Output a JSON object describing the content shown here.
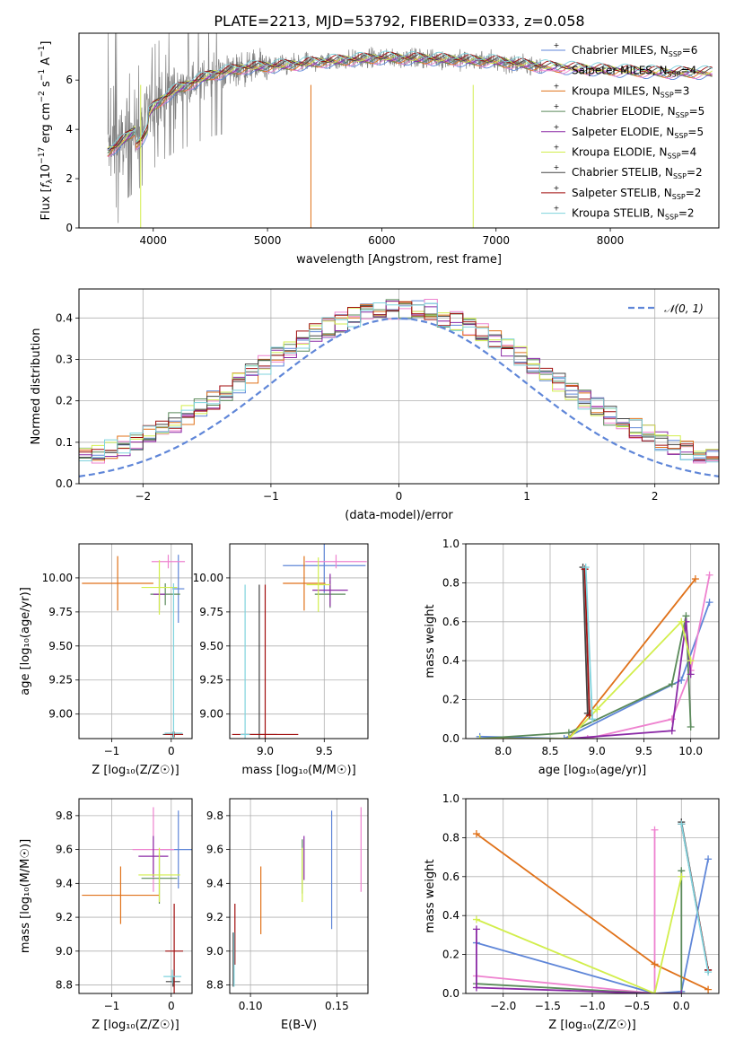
{
  "figure": {
    "title": "PLATE=2213, MJD=53792, FIBERID=0333, z=0.058",
    "colors": {
      "Chabrier MILES": "#5f86d8",
      "Salpeter MILES": "#ee82cf",
      "Kroupa MILES": "#e0721a",
      "Chabrier ELODIE": "#5a8a5a",
      "Salpeter ELODIE": "#8b2aa6",
      "Kroupa ELODIE": "#d2ee4c",
      "Chabrier STELIB": "#444444",
      "Salpeter STELIB": "#a00e0e",
      "Kroupa STELIB": "#7fd3dd",
      "data": "#808080",
      "normal": "#5f86d8"
    }
  },
  "chart_data": [
    {
      "id": "spectrum",
      "type": "line",
      "xlabel": "wavelength [Angstrom, rest frame]",
      "ylabel": "Flux [f_λ10^-17 erg cm^-2 s^-1 A^-1]",
      "xlim": [
        3350,
        8950
      ],
      "ylim": [
        0,
        7.9
      ],
      "xticks": [
        "4000",
        "5000",
        "6000",
        "7000",
        "8000"
      ],
      "yticks": [
        "0",
        "2",
        "4",
        "6"
      ],
      "grid": false,
      "legend_position": "right",
      "legend": [
        {
          "name": "Chabrier MILES",
          "nssp": "6"
        },
        {
          "name": "Salpeter MILES",
          "nssp": "4"
        },
        {
          "name": "Kroupa MILES",
          "nssp": "3"
        },
        {
          "name": "Chabrier ELODIE",
          "nssp": "5"
        },
        {
          "name": "Salpeter ELODIE",
          "nssp": "5"
        },
        {
          "name": "Kroupa ELODIE",
          "nssp": "4"
        },
        {
          "name": "Chabrier STELIB",
          "nssp": "2"
        },
        {
          "name": "Salpeter STELIB",
          "nssp": "2"
        },
        {
          "name": "Kroupa STELIB",
          "nssp": "2"
        }
      ],
      "continuum": [
        [
          3600,
          3.1
        ],
        [
          3700,
          3.4
        ],
        [
          3800,
          3.8
        ],
        [
          3900,
          4.2
        ],
        [
          4000,
          4.9
        ],
        [
          4100,
          5.3
        ],
        [
          4200,
          5.6
        ],
        [
          4300,
          5.8
        ],
        [
          4500,
          6.2
        ],
        [
          4800,
          6.5
        ],
        [
          5000,
          6.55
        ],
        [
          5200,
          6.6
        ],
        [
          5500,
          6.75
        ],
        [
          6000,
          6.9
        ],
        [
          6500,
          6.85
        ],
        [
          7000,
          6.75
        ],
        [
          7400,
          6.55
        ],
        [
          8000,
          6.4
        ],
        [
          8500,
          6.3
        ],
        [
          8900,
          6.3
        ]
      ],
      "data_range": [
        3600,
        7400
      ]
    },
    {
      "id": "residuals",
      "type": "line",
      "xlabel": "(data-model)/error",
      "ylabel": "Normed distribution",
      "xlim": [
        -2.5,
        2.5
      ],
      "ylim": [
        0,
        0.47
      ],
      "xticks": [
        "−2",
        "−1",
        "0",
        "1",
        "2"
      ],
      "yticks": [
        "0.0",
        "0.1",
        "0.2",
        "0.3",
        "0.4"
      ],
      "grid": true,
      "legend_position": "upper right",
      "legend": [
        {
          "name": "𝒩(0, 1)"
        }
      ]
    },
    {
      "id": "age-vs-Z",
      "type": "scatter",
      "xlabel": "Z [log₁₀(Z/Z☉)]",
      "ylabel": "age  [log₁₀(age/yr)]",
      "xlim": [
        -1.55,
        0.35
      ],
      "ylim": [
        8.82,
        10.25
      ],
      "xticks": [
        "−1",
        "0"
      ],
      "yticks": [
        "9.00",
        "9.25",
        "9.50",
        "9.75",
        "10.00"
      ],
      "grid": true,
      "points": [
        {
          "model": "Chabrier MILES",
          "x": 0.12,
          "xerr": 0.1,
          "y": 9.92,
          "yerr": 0.25
        },
        {
          "model": "Salpeter MILES",
          "x": -0.05,
          "xerr": 0.28,
          "y": 10.12,
          "yerr": 0.05
        },
        {
          "model": "Kroupa MILES",
          "x": -0.9,
          "xerr": 0.6,
          "y": 9.96,
          "yerr": 0.2
        },
        {
          "model": "Chabrier ELODIE",
          "x": -0.1,
          "xerr": 0.25,
          "y": 9.88,
          "yerr": 0.08
        },
        {
          "model": "Salpeter ELODIE",
          "x": -0.2,
          "xerr": 0.1,
          "y": 9.88,
          "yerr": 0.12
        },
        {
          "model": "Kroupa ELODIE",
          "x": -0.2,
          "xerr": 0.3,
          "y": 9.93,
          "yerr": 0.2
        },
        {
          "model": "Chabrier STELIB",
          "x": 0.03,
          "xerr": 0.17,
          "y": 8.85,
          "yerr": 0.02
        },
        {
          "model": "Salpeter STELIB",
          "x": 0.05,
          "xerr": 0.15,
          "y": 8.85,
          "yerr": 0.02
        },
        {
          "model": "Kroupa STELIB",
          "x": 0.04,
          "xerr": 0.15,
          "y": 8.86,
          "yerr": 1.1
        }
      ]
    },
    {
      "id": "age-vs-mass",
      "type": "scatter",
      "xlabel": "mass [log₁₀(M/M☉)]",
      "ylabel": "",
      "xlim": [
        8.7,
        9.87
      ],
      "ylim": [
        8.82,
        10.25
      ],
      "xticks": [
        "9.0",
        "9.5"
      ],
      "yticks": [
        "9.00",
        "9.25",
        "9.50",
        "9.75",
        "10.00"
      ],
      "grid": true,
      "points": [
        {
          "model": "Chabrier MILES",
          "x": 9.5,
          "xerr": 0.35,
          "y": 10.09,
          "yerr": 0.2
        },
        {
          "model": "Salpeter MILES",
          "x": 9.6,
          "xerr": 0.26,
          "y": 10.12,
          "yerr": 0.05
        },
        {
          "model": "Kroupa MILES",
          "x": 9.33,
          "xerr": 0.18,
          "y": 9.96,
          "yerr": 0.2
        },
        {
          "model": "Chabrier ELODIE",
          "x": 9.55,
          "xerr": 0.13,
          "y": 9.88,
          "yerr": 0.1
        },
        {
          "model": "Salpeter ELODIE",
          "x": 9.55,
          "xerr": 0.15,
          "y": 9.91,
          "yerr": 0.12
        },
        {
          "model": "Kroupa ELODIE",
          "x": 9.45,
          "xerr": 0.1,
          "y": 9.95,
          "yerr": 0.2
        },
        {
          "model": "Chabrier STELIB",
          "x": 8.95,
          "xerr": 0.15,
          "y": 8.85,
          "yerr": 1.1
        },
        {
          "model": "Salpeter STELIB",
          "x": 9.0,
          "xerr": 0.28,
          "y": 8.85,
          "yerr": 1.1
        },
        {
          "model": "Kroupa STELIB",
          "x": 8.83,
          "xerr": 0.04,
          "y": 8.85,
          "yerr": 1.1
        }
      ]
    },
    {
      "id": "weight-vs-age",
      "type": "line",
      "xlabel": "age  [log₁₀(age/yr)]",
      "ylabel": "mass weight",
      "xlim": [
        7.6,
        10.3
      ],
      "ylim": [
        0,
        1
      ],
      "xticks": [
        "8.0",
        "8.5",
        "9.0",
        "9.5",
        "10.0"
      ],
      "yticks": [
        "0.0",
        "0.2",
        "0.4",
        "0.6",
        "0.8",
        "1.0"
      ],
      "grid": true,
      "series": [
        {
          "model": "Chabrier MILES",
          "points": [
            [
              7.75,
              0.01
            ],
            [
              8.65,
              0.0
            ],
            [
              9.9,
              0.3
            ],
            [
              10.2,
              0.7
            ]
          ]
        },
        {
          "model": "Salpeter MILES",
          "points": [
            [
              8.9,
              0.0
            ],
            [
              9.8,
              0.1
            ],
            [
              10.0,
              0.35
            ],
            [
              10.2,
              0.84
            ]
          ]
        },
        {
          "model": "Kroupa MILES",
          "points": [
            [
              8.7,
              0.0
            ],
            [
              10.05,
              0.82
            ]
          ]
        },
        {
          "model": "Chabrier ELODIE",
          "points": [
            [
              7.75,
              0.0
            ],
            [
              8.7,
              0.03
            ],
            [
              9.8,
              0.28
            ],
            [
              9.95,
              0.63
            ],
            [
              10.0,
              0.06
            ]
          ]
        },
        {
          "model": "Salpeter ELODIE",
          "points": [
            [
              8.7,
              0.0
            ],
            [
              9.8,
              0.04
            ],
            [
              9.95,
              0.6
            ],
            [
              10.0,
              0.33
            ]
          ]
        },
        {
          "model": "Kroupa ELODIE",
          "points": [
            [
              7.75,
              0.0
            ],
            [
              8.7,
              0.0
            ],
            [
              9.0,
              0.15
            ],
            [
              9.9,
              0.6
            ],
            [
              10.0,
              0.4
            ]
          ]
        },
        {
          "model": "Chabrier STELIB",
          "points": [
            [
              8.9,
              0.13
            ],
            [
              8.85,
              0.88
            ]
          ]
        },
        {
          "model": "Salpeter STELIB",
          "points": [
            [
              8.92,
              0.12
            ],
            [
              8.87,
              0.87
            ]
          ]
        },
        {
          "model": "Kroupa STELIB",
          "points": [
            [
              8.95,
              0.1
            ],
            [
              8.88,
              0.88
            ]
          ]
        }
      ]
    },
    {
      "id": "mass-vs-Z",
      "type": "scatter",
      "xlabel": "Z [log₁₀(Z/Z☉)]",
      "ylabel": "mass [log₁₀(M/M☉)]",
      "xlim": [
        -1.55,
        0.35
      ],
      "ylim": [
        8.75,
        9.9
      ],
      "xticks": [
        "−1",
        "0"
      ],
      "yticks": [
        "8.8",
        "9.0",
        "9.2",
        "9.4",
        "9.6",
        "9.8"
      ],
      "grid": true,
      "points": [
        {
          "model": "Chabrier MILES",
          "x": 0.12,
          "xerr": 0.3,
          "y": 9.6,
          "yerr": 0.23
        },
        {
          "model": "Salpeter MILES",
          "x": -0.3,
          "xerr": 0.35,
          "y": 9.6,
          "yerr": 0.25
        },
        {
          "model": "Kroupa MILES",
          "x": -0.85,
          "xerr": 0.65,
          "y": 9.33,
          "yerr": 0.17
        },
        {
          "model": "Chabrier ELODIE",
          "x": -0.2,
          "xerr": 0.3,
          "y": 9.43,
          "yerr": 0.15
        },
        {
          "model": "Salpeter ELODIE",
          "x": -0.3,
          "xerr": 0.25,
          "y": 9.56,
          "yerr": 0.12
        },
        {
          "model": "Kroupa ELODIE",
          "x": -0.2,
          "xerr": 0.35,
          "y": 9.45,
          "yerr": 0.16
        },
        {
          "model": "Chabrier STELIB",
          "x": 0.03,
          "xerr": 0.12,
          "y": 8.82,
          "yerr": 0.03
        },
        {
          "model": "Salpeter STELIB",
          "x": 0.05,
          "xerr": 0.15,
          "y": 9.0,
          "yerr": 0.28
        },
        {
          "model": "Kroupa STELIB",
          "x": 0.02,
          "xerr": 0.15,
          "y": 8.85,
          "yerr": 0.04
        }
      ]
    },
    {
      "id": "mass-vs-ebv",
      "type": "scatter",
      "xlabel": "E(B-V)",
      "ylabel": "",
      "xlim": [
        0.088,
        0.168
      ],
      "ylim": [
        8.75,
        9.9
      ],
      "xticks": [
        "0.10",
        "0.15"
      ],
      "yticks": [
        "8.8",
        "9.0",
        "9.2",
        "9.4",
        "9.6",
        "9.8"
      ],
      "grid": true,
      "points": [
        {
          "model": "Chabrier MILES",
          "x": 0.147,
          "y": 9.48,
          "yerr": 0.35
        },
        {
          "model": "Salpeter MILES",
          "x": 0.164,
          "y": 9.6,
          "yerr": 0.25
        },
        {
          "model": "Kroupa MILES",
          "x": 0.106,
          "y": 9.3,
          "yerr": 0.2
        },
        {
          "model": "Chabrier ELODIE",
          "x": 0.13,
          "y": 9.5,
          "yerr": 0.16
        },
        {
          "model": "Salpeter ELODIE",
          "x": 0.131,
          "y": 9.55,
          "yerr": 0.13
        },
        {
          "model": "Kroupa ELODIE",
          "x": 0.13,
          "y": 9.45,
          "yerr": 0.16
        },
        {
          "model": "Chabrier STELIB",
          "x": 0.09,
          "y": 8.95,
          "yerr": 0.16
        },
        {
          "model": "Salpeter STELIB",
          "x": 0.091,
          "y": 9.1,
          "yerr": 0.18
        },
        {
          "model": "Kroupa STELIB",
          "x": 0.0905,
          "y": 8.95,
          "yerr": 0.16
        }
      ]
    },
    {
      "id": "weight-vs-Z",
      "type": "line",
      "xlabel": "Z [log₁₀(Z/Z☉)]",
      "ylabel": "mass weight",
      "xlim": [
        -2.42,
        0.42
      ],
      "ylim": [
        0,
        1
      ],
      "xticks": [
        "−2.0",
        "−1.5",
        "−1.0",
        "−0.5",
        "0.0"
      ],
      "yticks": [
        "0.0",
        "0.2",
        "0.4",
        "0.6",
        "0.8",
        "1.0"
      ],
      "grid": true,
      "series": [
        {
          "model": "Chabrier MILES",
          "points": [
            [
              -2.3,
              0.26
            ],
            [
              -0.3,
              0.0
            ],
            [
              0.0,
              0.01
            ],
            [
              0.3,
              0.69
            ]
          ]
        },
        {
          "model": "Salpeter MILES",
          "points": [
            [
              -2.3,
              0.09
            ],
            [
              -0.3,
              0.0
            ],
            [
              -0.3,
              0.84
            ]
          ]
        },
        {
          "model": "Kroupa MILES",
          "points": [
            [
              -2.3,
              0.82
            ],
            [
              -0.3,
              0.15
            ],
            [
              0.3,
              0.02
            ]
          ]
        },
        {
          "model": "Chabrier ELODIE",
          "points": [
            [
              -2.3,
              0.05
            ],
            [
              -0.3,
              0.0
            ],
            [
              0.0,
              0.0
            ],
            [
              0.0,
              0.63
            ]
          ]
        },
        {
          "model": "Salpeter ELODIE",
          "points": [
            [
              -2.3,
              0.33
            ],
            [
              -2.3,
              0.03
            ],
            [
              -0.3,
              0.0
            ],
            [
              0.0,
              0.0
            ]
          ]
        },
        {
          "model": "Kroupa ELODIE",
          "points": [
            [
              -2.3,
              0.38
            ],
            [
              -0.3,
              0.0
            ],
            [
              0.0,
              0.6
            ]
          ]
        },
        {
          "model": "Chabrier STELIB",
          "points": [
            [
              0.0,
              0.88
            ],
            [
              0.3,
              0.12
            ]
          ]
        },
        {
          "model": "Salpeter STELIB",
          "points": [
            [
              0.0,
              0.87
            ],
            [
              0.3,
              0.12
            ]
          ]
        },
        {
          "model": "Kroupa STELIB",
          "points": [
            [
              0.0,
              0.87
            ],
            [
              0.3,
              0.11
            ]
          ]
        }
      ]
    }
  ]
}
